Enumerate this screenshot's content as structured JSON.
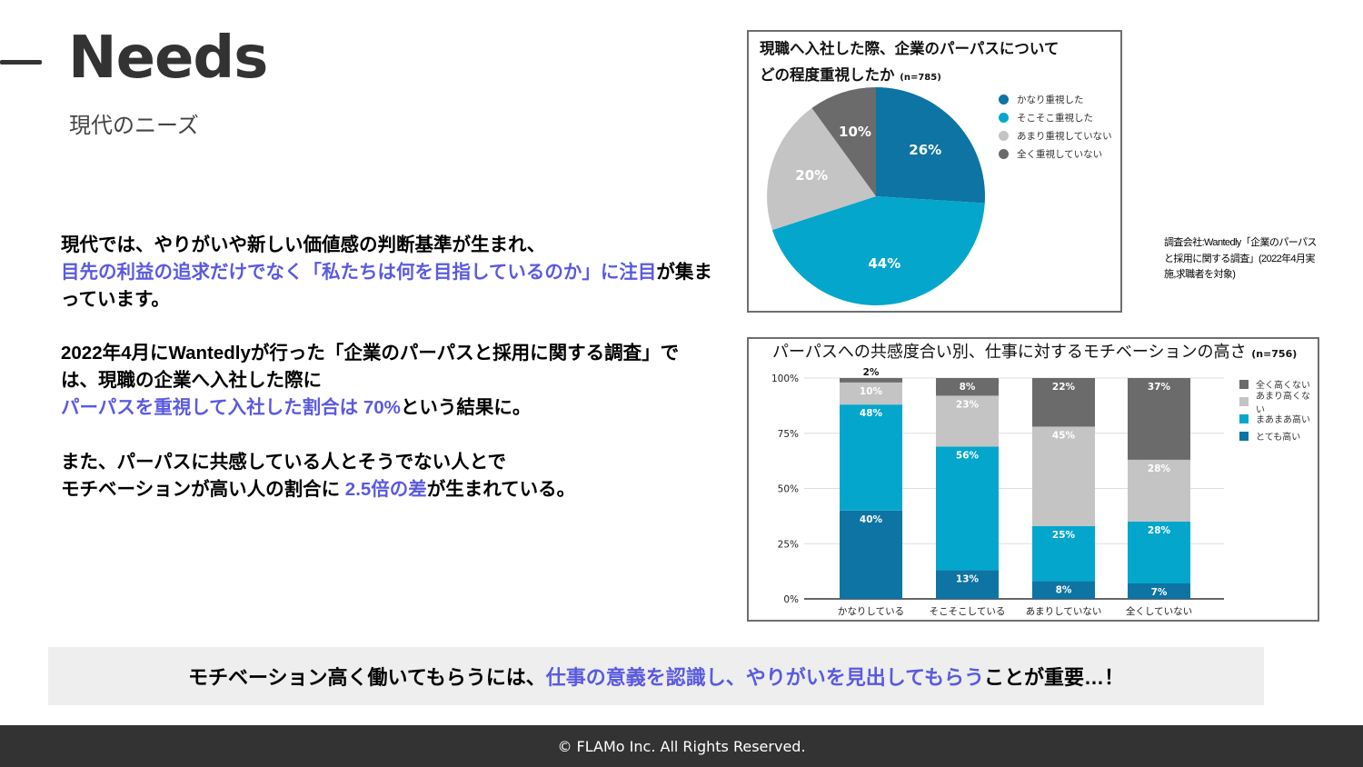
{
  "header": {
    "title": "Needs",
    "subtitle": "現代のニーズ"
  },
  "body": {
    "p1": {
      "line1": "現代では、やりがいや新しい価値感の判断基準が生まれ、",
      "highlight": "目先の利益の追求だけでなく「私たちは何を目指しているのか」に注目",
      "tail": "が集まっています。"
    },
    "p2": {
      "line1": "2022年4月にWantedlyが行った「企業のパーパスと採用に関する調査」では、現職の企業へ入社した際に",
      "highlight": "パーパスを重視して入社した割合は 70%",
      "tail": "という結果に。"
    },
    "p3": {
      "line1": "また、パーパスに共感している人とそうでない人とで",
      "line2_pre": "モチベーションが高い人の割合に ",
      "highlight": "2.5倍の差",
      "tail": "が生まれている。"
    }
  },
  "source_note": "調査会社:Wantedly「企業のパーパスと採用に関する調査」(2022年4月実施,求職者を対象)",
  "callout": {
    "pre": "モチベーション高く働いてもらうには、",
    "highlight": "仕事の意義を認識し、やりがいを見出してもらう",
    "post": " ことが重要…！"
  },
  "footer": {
    "copyright": "© FLAMo Inc. All Rights Reserved."
  },
  "colors": {
    "accent_text": "#5a5ae0",
    "dark_blue": "#0d74a3",
    "light_blue": "#05a6cb",
    "light_gray": "#c4c4c4",
    "dark_gray": "#6b6b6b",
    "footer_bg": "#333333",
    "callout_bg": "#eeeeee"
  },
  "chart_data": [
    {
      "type": "pie",
      "title": "現職へ入社した際、企業のパーパスについてどの程度重視したか",
      "title_line1": "現職へ入社した際、企業のパーパスについて",
      "title_line2": "どの程度重視したか",
      "sample": "(n=785)",
      "categories": [
        "かなり重視した",
        "そこそこ重視した",
        "あまり重視していない",
        "全く重視していない"
      ],
      "values": [
        26,
        44,
        20,
        10
      ],
      "labels": [
        "26%",
        "44%",
        "20%",
        "10%"
      ],
      "colors": [
        "#0d74a3",
        "#05a6cb",
        "#c4c4c4",
        "#6b6b6b"
      ],
      "legend_position": "right"
    },
    {
      "type": "bar",
      "stacked": true,
      "title": "パーパスへの共感度合い別、仕事に対するモチベーションの高さ",
      "sample": "(n=756)",
      "categories": [
        "かなりしている",
        "そこそこしている",
        "あまりしていない",
        "全くしていない"
      ],
      "yticks": [
        "0%",
        "25%",
        "50%",
        "75%",
        "100%"
      ],
      "ylim": [
        0,
        100
      ],
      "series": [
        {
          "name": "とても高い",
          "color": "#0d74a3",
          "values": [
            40,
            13,
            8,
            7
          ],
          "labels": [
            "40%",
            "13%",
            "8%",
            "7%"
          ]
        },
        {
          "name": "まあまあ高い",
          "color": "#05a6cb",
          "values": [
            48,
            56,
            25,
            28
          ],
          "labels": [
            "48%",
            "56%",
            "25%",
            "28%"
          ]
        },
        {
          "name": "あまり高くない",
          "color": "#c4c4c4",
          "values": [
            10,
            23,
            45,
            28
          ],
          "labels": [
            "10%",
            "23%",
            "45%",
            "28%"
          ]
        },
        {
          "name": "全く高くない",
          "color": "#6b6b6b",
          "values": [
            2,
            8,
            22,
            37
          ],
          "labels": [
            "2%",
            "8%",
            "22%",
            "37%"
          ]
        }
      ],
      "legend_order": [
        "全く高くない",
        "あまり高くない",
        "まあまあ高い",
        "とても高い"
      ],
      "legend_position": "right",
      "grid": true
    }
  ]
}
